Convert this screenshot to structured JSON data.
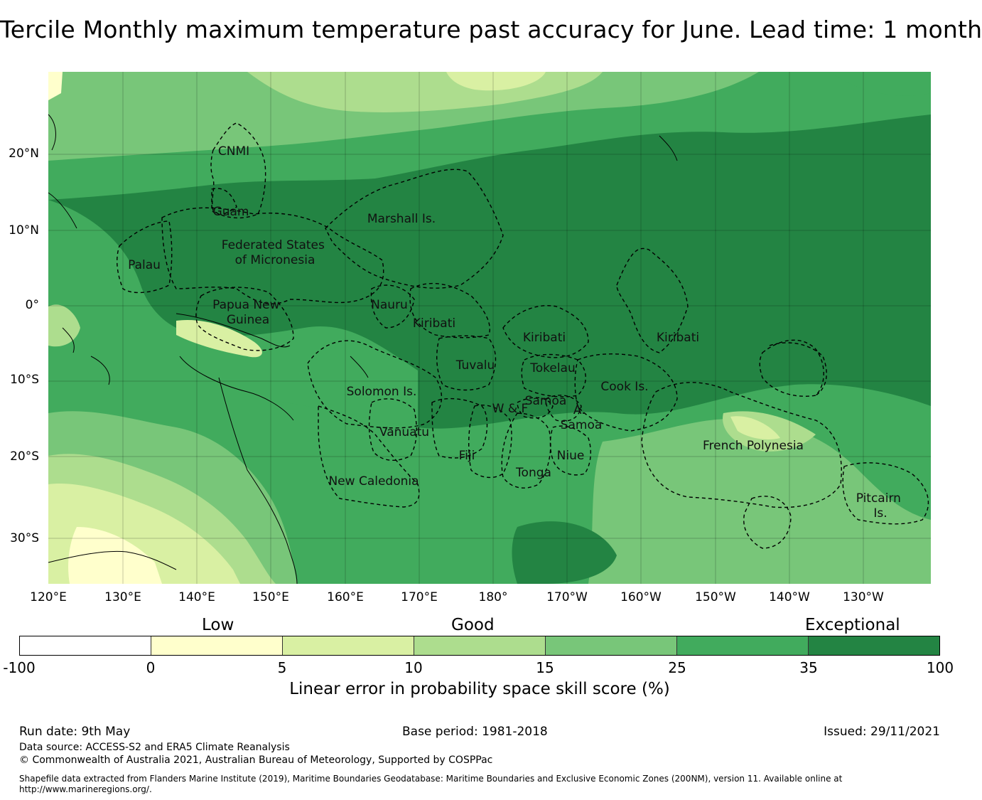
{
  "title": "Tercile Monthly maximum temperature past accuracy for June. Lead time: 1 month",
  "map": {
    "lat_labels": [
      "20°N",
      "10°N",
      "0°",
      "10°S",
      "20°S",
      "30°S"
    ],
    "lon_labels": [
      "120°E",
      "130°E",
      "140°E",
      "150°E",
      "160°E",
      "170°E",
      "180°",
      "170°W",
      "160°W",
      "150°W",
      "140°W",
      "130°W"
    ],
    "regions": [
      {
        "name": "CNMI",
        "lines": [
          "CNMI"
        ]
      },
      {
        "name": "Guam",
        "lines": [
          "Guam"
        ]
      },
      {
        "name": "Marshall Is.",
        "lines": [
          "Marshall Is."
        ]
      },
      {
        "name": "Palau",
        "lines": [
          "Palau"
        ]
      },
      {
        "name": "Federated States of Micronesia",
        "lines": [
          "Federated States",
          "of Micronesia"
        ]
      },
      {
        "name": "Papua New Guinea",
        "lines": [
          "Papua New",
          "Guinea"
        ]
      },
      {
        "name": "Nauru",
        "lines": [
          "Nauru"
        ]
      },
      {
        "name": "Kiribati (Gilbert)",
        "lines": [
          "Kiribati"
        ]
      },
      {
        "name": "Kiribati (Phoenix)",
        "lines": [
          "Kiribati"
        ]
      },
      {
        "name": "Kiribati (Line)",
        "lines": [
          "Kiribati"
        ]
      },
      {
        "name": "Tuvalu",
        "lines": [
          "Tuvalu"
        ]
      },
      {
        "name": "Tokelau",
        "lines": [
          "Tokelau"
        ]
      },
      {
        "name": "Solomon Is.",
        "lines": [
          "Solomon Is."
        ]
      },
      {
        "name": "Cook Is.",
        "lines": [
          "Cook Is."
        ]
      },
      {
        "name": "Samoa",
        "lines": [
          "Samoa"
        ]
      },
      {
        "name": "W & F",
        "lines": [
          "W & F"
        ]
      },
      {
        "name": "A. Samoa",
        "lines": [
          "A.",
          "Samoa"
        ]
      },
      {
        "name": "Vanuatu",
        "lines": [
          "Vanuatu"
        ]
      },
      {
        "name": "French Polynesia",
        "lines": [
          "French Polynesia"
        ]
      },
      {
        "name": "Fiji",
        "lines": [
          "Fiji"
        ]
      },
      {
        "name": "Niue",
        "lines": [
          "Niue"
        ]
      },
      {
        "name": "Tonga",
        "lines": [
          "Tonga"
        ]
      },
      {
        "name": "New Caledonia",
        "lines": [
          "New Caledonia"
        ]
      },
      {
        "name": "Pitcairn Is.",
        "lines": [
          "Pitcairn",
          "Is."
        ]
      }
    ]
  },
  "legend": {
    "categories": [
      "Low",
      "Good",
      "Exceptional"
    ],
    "ticks": [
      "-100",
      "0",
      "5",
      "10",
      "15",
      "25",
      "35",
      "100"
    ],
    "colors": [
      "#ffffff",
      "#ffffcc",
      "#d9f0a3",
      "#addd8e",
      "#78c679",
      "#41ab5d",
      "#238443"
    ],
    "label": "Linear error in probability space skill score (%)"
  },
  "footer": {
    "run_date": "Run date: 9th May",
    "base_period": "Base period: 1981-2018",
    "issued": "Issued: 29/11/2021",
    "data_source": "Data source: ACCESS-S2 and ERA5 Climate Reanalysis",
    "copyright": "© Commonwealth of Australia 2021, Australian Bureau of Meteorology, Supported by COSPPac",
    "shapefile_line1": "Shapefile data extracted from Flanders Marine Institute (2019), Maritime Boundaries Geodatabase: Maritime Boundaries and Exclusive Economic Zones (200NM), version 11. Available online at",
    "shapefile_line2": "http://www.marineregions.org/."
  }
}
